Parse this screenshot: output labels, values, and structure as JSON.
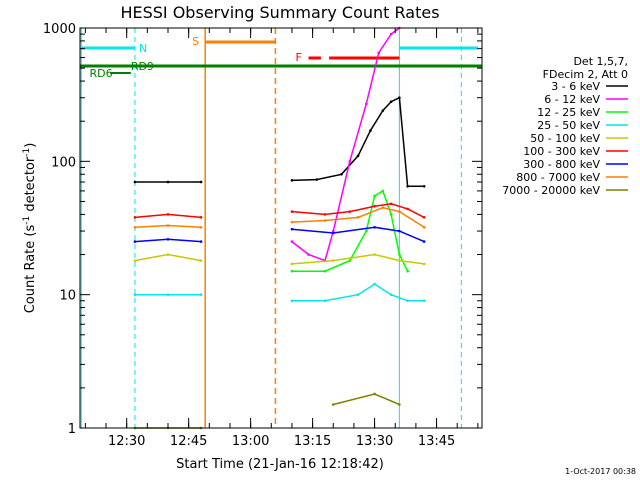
{
  "chart_data": {
    "type": "line",
    "title": "HESSI Observing Summary Count Rates",
    "xlabel": "Start Time (21-Jan-16 12:18:42)",
    "ylabel": "Count Rate (s⁻¹ detector⁻¹)",
    "ylabel_parts": [
      "Count Rate (s",
      "-1",
      " detector",
      "-1",
      ")"
    ],
    "yscale": "log",
    "ylim": [
      1,
      1000
    ],
    "xlim": [
      "12:18:42",
      "13:56:00"
    ],
    "x_tick_labels": [
      "12:30",
      "12:45",
      "13:00",
      "13:15",
      "13:30",
      "13:45"
    ],
    "y_tick_labels": [
      "1",
      "10",
      "100",
      "1000"
    ],
    "legend_header": [
      "Det 1,5,7,",
      "FDecim 2, Att 0"
    ],
    "legend_placement": "right",
    "footer": "1-Oct-2017 00:38",
    "flags": [
      {
        "label": "N",
        "color": "#00e5ee"
      },
      {
        "label": "S",
        "color": "#ff7f00"
      },
      {
        "label": "F",
        "color": "#ff0000"
      },
      {
        "label": "RD9",
        "color": "#007f00"
      },
      {
        "label": "RD6",
        "color": "#007f00"
      }
    ],
    "series": [
      {
        "name": "3 - 6 keV",
        "color": "#000000",
        "x": [
          "12:32",
          "12:40",
          "12:48",
          "13:10",
          "13:16",
          "13:22",
          "13:26",
          "13:29",
          "13:32",
          "13:34",
          "13:36",
          "13:38",
          "13:42"
        ],
        "values": [
          70,
          70,
          70,
          72,
          73,
          80,
          110,
          170,
          240,
          280,
          300,
          65,
          65
        ]
      },
      {
        "name": "6 - 12 keV",
        "color": "#ff00ff",
        "x": [
          "13:10",
          "13:14",
          "13:18",
          "13:20",
          "13:24",
          "13:28",
          "13:31",
          "13:34",
          "13:36"
        ],
        "values": [
          25,
          20,
          18,
          30,
          100,
          270,
          650,
          900,
          1000
        ]
      },
      {
        "name": "12 - 25 keV",
        "color": "#00ff00",
        "x": [
          "13:10",
          "13:18",
          "13:24",
          "13:28",
          "13:30",
          "13:32",
          "13:34",
          "13:36",
          "13:38"
        ],
        "values": [
          15,
          15,
          18,
          30,
          55,
          60,
          40,
          20,
          15
        ]
      },
      {
        "name": "25 - 50 keV",
        "color": "#00e5ee",
        "x": [
          "12:32",
          "12:40",
          "12:48",
          "13:10",
          "13:18",
          "13:26",
          "13:30",
          "13:34",
          "13:38",
          "13:42"
        ],
        "values": [
          10,
          10,
          10,
          9,
          9,
          10,
          12,
          10,
          9,
          9
        ]
      },
      {
        "name": "50 - 100 keV",
        "color": "#c8c800",
        "x": [
          "12:32",
          "12:40",
          "12:48",
          "13:10",
          "13:20",
          "13:30",
          "13:36",
          "13:42"
        ],
        "values": [
          18,
          20,
          18,
          17,
          18,
          20,
          18,
          17
        ]
      },
      {
        "name": "100 - 300 keV",
        "color": "#ff0000",
        "x": [
          "12:32",
          "12:40",
          "12:48",
          "13:10",
          "13:18",
          "13:24",
          "13:30",
          "13:34",
          "13:38",
          "13:42"
        ],
        "values": [
          38,
          40,
          38,
          42,
          40,
          42,
          46,
          48,
          44,
          38
        ]
      },
      {
        "name": "300 - 800 keV",
        "color": "#0000ff",
        "x": [
          "12:32",
          "12:40",
          "12:48",
          "13:10",
          "13:20",
          "13:30",
          "13:36",
          "13:42"
        ],
        "values": [
          25,
          26,
          25,
          31,
          29,
          32,
          30,
          25
        ]
      },
      {
        "name": "800 - 7000 keV",
        "color": "#ff7f00",
        "x": [
          "12:32",
          "12:40",
          "12:48",
          "13:10",
          "13:18",
          "13:26",
          "13:32",
          "13:36",
          "13:42"
        ],
        "values": [
          32,
          33,
          32,
          35,
          36,
          38,
          45,
          42,
          32
        ]
      },
      {
        "name": "7000 - 20000 keV",
        "color": "#7f7f00",
        "x": [
          "12:32",
          "12:40",
          "12:48",
          "13:20",
          "13:30",
          "13:36"
        ],
        "values": [
          1,
          1,
          1,
          1.5,
          1.8,
          1.5
        ]
      }
    ]
  }
}
